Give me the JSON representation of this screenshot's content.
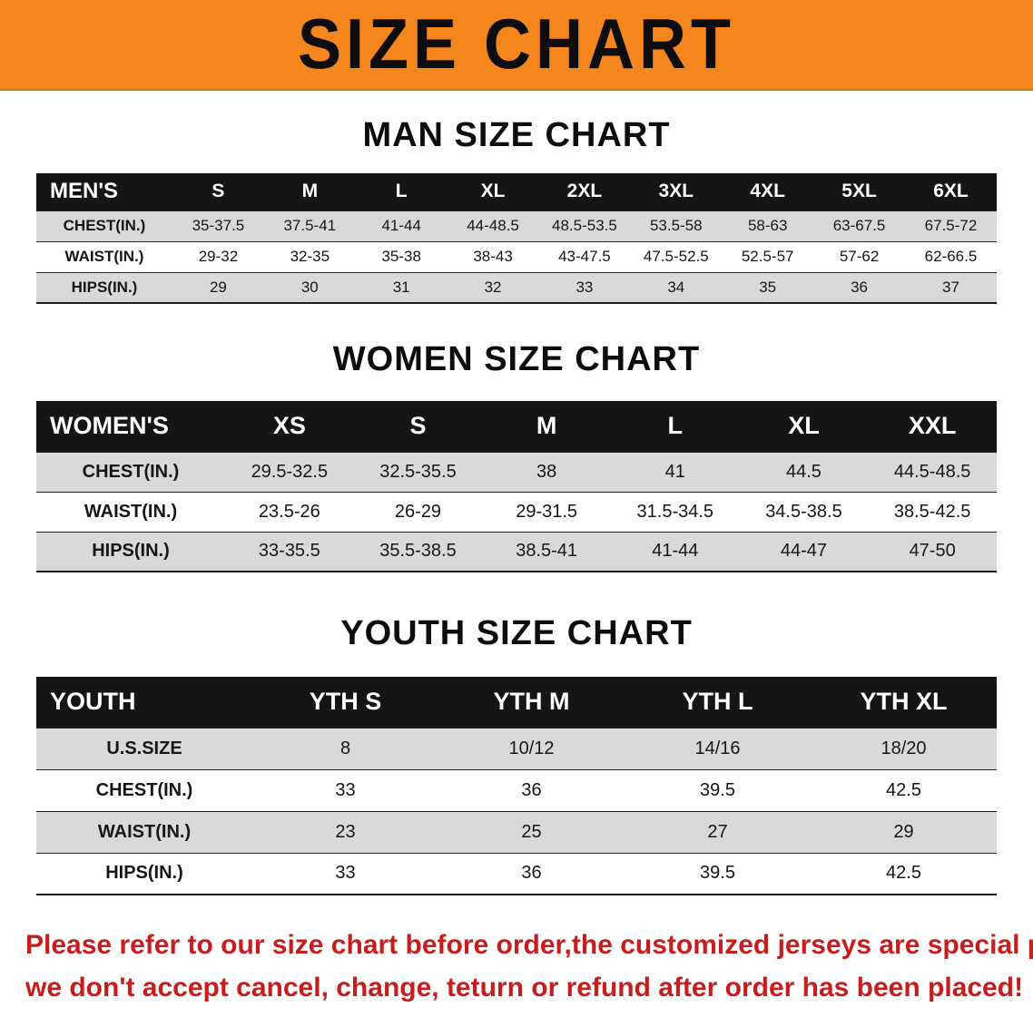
{
  "banner": {
    "title": "SIZE CHART",
    "bg_color": "#F5861E",
    "text_color": "#0d0d0d"
  },
  "colors": {
    "table_header_bg": "#151515",
    "table_header_text": "#ffffff",
    "row_shade": "#d9d9d9",
    "footer_text": "#c81d1d"
  },
  "sections": [
    {
      "heading": "MAN SIZE CHART",
      "table": {
        "header": [
          "MEN'S",
          "S",
          "M",
          "L",
          "XL",
          "2XL",
          "3XL",
          "4XL",
          "5XL",
          "6XL"
        ],
        "rows": [
          [
            "CHEST(IN.)",
            "35-37.5",
            "37.5-41",
            "41-44",
            "44-48.5",
            "48.5-53.5",
            "53.5-58",
            "58-63",
            "63-67.5",
            "67.5-72"
          ],
          [
            "WAIST(IN.)",
            "29-32",
            "32-35",
            "35-38",
            "38-43",
            "43-47.5",
            "47.5-52.5",
            "52.5-57",
            "57-62",
            "62-66.5"
          ],
          [
            "HIPS(IN.)",
            "29",
            "30",
            "31",
            "32",
            "33",
            "34",
            "35",
            "36",
            "37"
          ]
        ]
      }
    },
    {
      "heading": "WOMEN SIZE CHART",
      "table": {
        "header": [
          "WOMEN'S",
          "XS",
          "S",
          "M",
          "L",
          "XL",
          "XXL"
        ],
        "rows": [
          [
            "CHEST(IN.)",
            "29.5-32.5",
            "32.5-35.5",
            "38",
            "41",
            "44.5",
            "44.5-48.5"
          ],
          [
            "WAIST(IN.)",
            "23.5-26",
            "26-29",
            "29-31.5",
            "31.5-34.5",
            "34.5-38.5",
            "38.5-42.5"
          ],
          [
            "HIPS(IN.)",
            "33-35.5",
            "35.5-38.5",
            "38.5-41",
            "41-44",
            "44-47",
            "47-50"
          ]
        ]
      }
    },
    {
      "heading": "YOUTH SIZE CHART",
      "table": {
        "header": [
          "YOUTH",
          "YTH S",
          "YTH M",
          "YTH L",
          "YTH XL"
        ],
        "rows": [
          [
            "U.S.SIZE",
            "8",
            "10/12",
            "14/16",
            "18/20"
          ],
          [
            "CHEST(IN.)",
            "33",
            "36",
            "39.5",
            "42.5"
          ],
          [
            "WAIST(IN.)",
            "23",
            "25",
            "27",
            "29"
          ],
          [
            "HIPS(IN.)",
            "33",
            "36",
            "39.5",
            "42.5"
          ]
        ]
      }
    }
  ],
  "footer_note": {
    "line1": "Please refer to our size chart before order,the customized jerseys are special products,",
    "line2": "we don't accept cancel, change, teturn or refund after order has been placed!"
  }
}
